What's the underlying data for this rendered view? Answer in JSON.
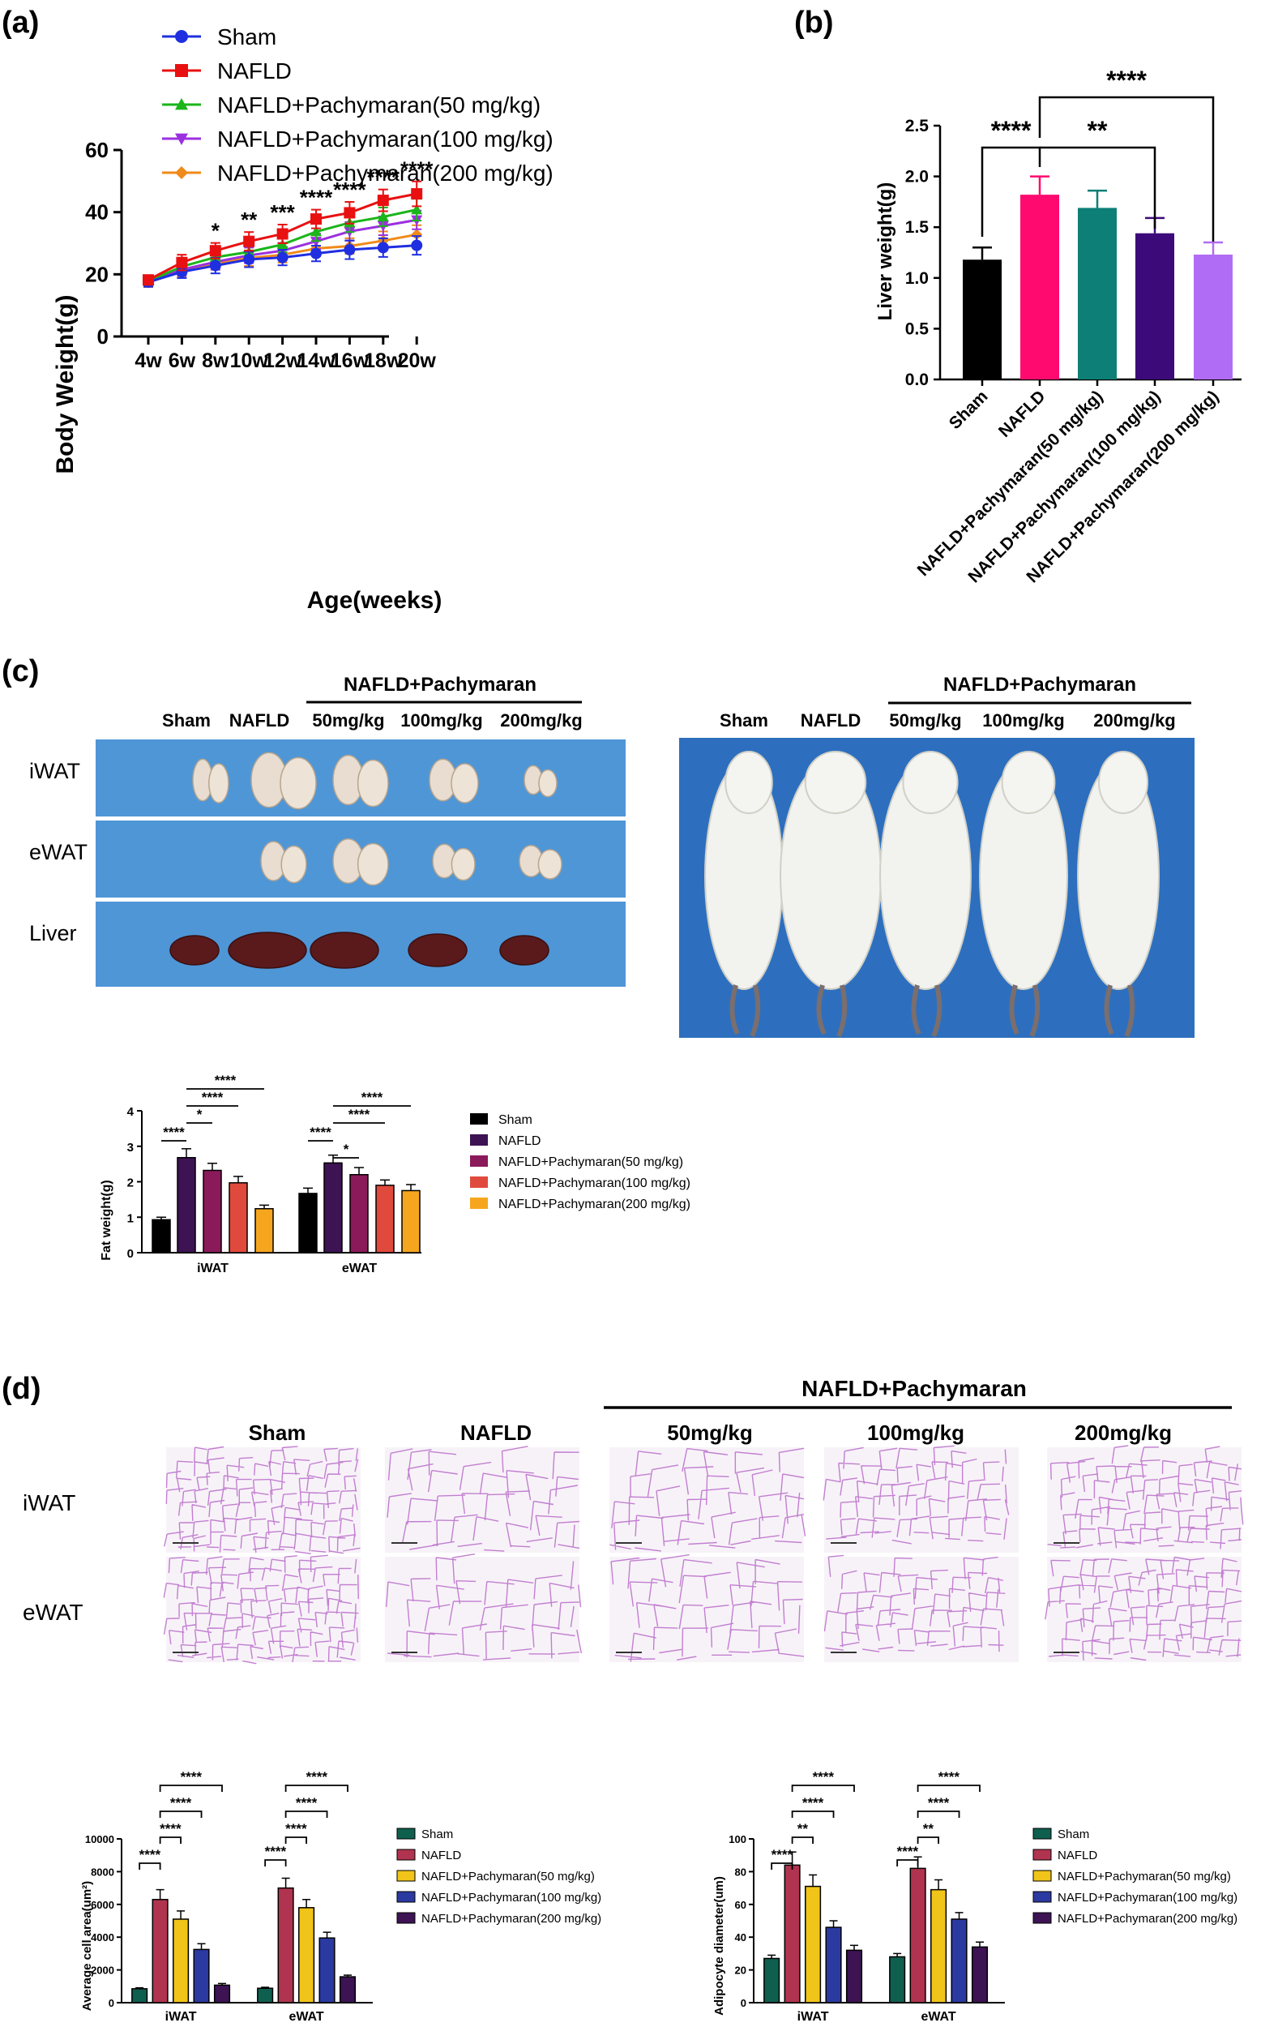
{
  "colors": {
    "sham": "#1f2fe0",
    "nafld": "#e81010",
    "p50": "#1ab51a",
    "p100": "#9b30e0",
    "p200": "#f08a1a",
    "barB": [
      "#000000",
      "#ff0a6e",
      "#0d7f76",
      "#3d0a7a",
      "#b06cf5"
    ],
    "barC": [
      "#000000",
      "#3d1354",
      "#8b1a5a",
      "#e04a3c",
      "#f6a61e"
    ],
    "barD": [
      "#0f5f4f",
      "#b0344f",
      "#f0c419",
      "#2b3aa0",
      "#3d1354"
    ],
    "photoBg": "#4a8fd4",
    "photoBg2": "#1e5fb3"
  },
  "panels": {
    "a": {
      "label": "(a)",
      "legend": [
        "Sham",
        "NAFLD",
        "NAFLD+Pachymaran(50 mg/kg)",
        "NAFLD+Pachymaran(100 mg/kg)",
        "NAFLD+Pachymaran(200 mg/kg)"
      ],
      "sig": [
        "",
        "",
        "*",
        "**",
        "***",
        "****",
        "****",
        "****",
        "****"
      ]
    },
    "b": {
      "label": "(b)",
      "sig": [
        "****",
        "**",
        "****"
      ]
    },
    "c": {
      "label": "(c)",
      "header": "NAFLD+Pachymaran",
      "groups": [
        "Sham",
        "NAFLD",
        "50mg/kg",
        "100mg/kg",
        "200mg/kg"
      ],
      "rows": [
        "iWAT",
        "eWAT",
        "Liver"
      ],
      "sig": [
        "****",
        "*",
        "****",
        "****",
        "****",
        "*",
        "****",
        "****"
      ]
    },
    "d": {
      "label": "(d)",
      "header": "NAFLD+Pachymaran",
      "groups": [
        "Sham",
        "NAFLD",
        "50mg/kg",
        "100mg/kg",
        "200mg/kg"
      ],
      "rows": [
        "iWAT",
        "eWAT"
      ],
      "sig": [
        "****",
        "****",
        "****",
        "****"
      ]
    }
  },
  "chart_data": [
    {
      "type": "line",
      "x": [
        "4w",
        "6w",
        "8w",
        "10w",
        "12w",
        "14w",
        "16w",
        "18w",
        "20w"
      ],
      "xlabel": "Age(weeks)",
      "ylabel": "Body Weight(g)",
      "ylim": [
        0,
        60
      ],
      "yticks": [
        "0",
        "20",
        "40",
        "60"
      ],
      "series": [
        {
          "name": "Sham",
          "values": [
            17.5,
            20.8,
            22.8,
            24.8,
            25.4,
            26.7,
            27.9,
            28.6,
            29.3
          ],
          "err": [
            1.5,
            2.0,
            2.5,
            2.5,
            2.5,
            2.5,
            3.0,
            3.0,
            3.0
          ]
        },
        {
          "name": "NAFLD",
          "values": [
            18.2,
            23.8,
            27.6,
            30.6,
            33.0,
            37.8,
            39.8,
            43.8,
            45.9
          ],
          "err": [
            1.5,
            2.5,
            2.5,
            3.0,
            3.0,
            3.0,
            3.5,
            3.5,
            4.0
          ]
        },
        {
          "name": "NAFLD+Pachymaran(50 mg/kg)",
          "values": [
            17.8,
            22.5,
            25.5,
            27.2,
            29.6,
            33.7,
            36.6,
            38.5,
            40.8
          ],
          "err": [
            1.5,
            2.0,
            2.5,
            2.5,
            2.5,
            3.0,
            3.0,
            3.0,
            3.5
          ]
        },
        {
          "name": "NAFLD+Pachymaran(100 mg/kg)",
          "values": [
            17.6,
            21.5,
            24.0,
            26.1,
            27.6,
            30.6,
            33.8,
            35.6,
            37.5
          ],
          "err": [
            1.5,
            2.0,
            2.5,
            2.5,
            2.5,
            2.5,
            3.0,
            3.0,
            3.0
          ]
        },
        {
          "name": "NAFLD+Pachymaran(200 mg/kg)",
          "values": [
            17.4,
            21.0,
            23.5,
            25.2,
            26.3,
            28.3,
            29.1,
            30.8,
            32.8
          ],
          "err": [
            1.5,
            2.0,
            2.0,
            2.5,
            2.5,
            2.5,
            2.5,
            3.0,
            3.0
          ]
        }
      ]
    },
    {
      "type": "bar",
      "categories": [
        "Sham",
        "NAFLD",
        "NAFLD+Pachymaran(50 mg/kg)",
        "NAFLD+Pachymaran(100 mg/kg)",
        "NAFLD+Pachymaran(200 mg/kg)"
      ],
      "values": [
        1.18,
        1.82,
        1.69,
        1.44,
        1.23
      ],
      "err": [
        0.12,
        0.18,
        0.17,
        0.15,
        0.12
      ],
      "ylabel": "Liver weight(g)",
      "ylim": [
        0,
        2.5
      ],
      "yticks": [
        "0.0",
        "0.5",
        "1.0",
        "1.5",
        "2.0",
        "2.5"
      ]
    },
    {
      "type": "bar",
      "categories": [
        "iWAT",
        "eWAT"
      ],
      "ylabel": "Fat weight(g)",
      "ylim": [
        0,
        4
      ],
      "yticks": [
        "0",
        "1",
        "2",
        "3",
        "4"
      ],
      "series": [
        {
          "name": "Sham",
          "values": [
            0.93,
            1.67
          ],
          "err": [
            0.07,
            0.15
          ]
        },
        {
          "name": "NAFLD",
          "values": [
            2.68,
            2.53
          ],
          "err": [
            0.25,
            0.22
          ]
        },
        {
          "name": "NAFLD+Pachymaran(50 mg/kg)",
          "values": [
            2.32,
            2.2
          ],
          "err": [
            0.2,
            0.2
          ]
        },
        {
          "name": "NAFLD+Pachymaran(100 mg/kg)",
          "values": [
            1.97,
            1.9
          ],
          "err": [
            0.18,
            0.15
          ]
        },
        {
          "name": "NAFLD+Pachymaran(200 mg/kg)",
          "values": [
            1.24,
            1.75
          ],
          "err": [
            0.1,
            0.17
          ]
        }
      ]
    },
    {
      "type": "bar",
      "categories": [
        "iWAT",
        "eWAT"
      ],
      "ylabel": "Average cell area(um²)",
      "ylim": [
        0,
        10000
      ],
      "yticks": [
        "0",
        "2000",
        "4000",
        "6000",
        "8000",
        "10000"
      ],
      "series": [
        {
          "name": "Sham",
          "values": [
            850,
            880
          ],
          "err": [
            60,
            60
          ]
        },
        {
          "name": "NAFLD",
          "values": [
            6300,
            7000
          ],
          "err": [
            600,
            600
          ]
        },
        {
          "name": "NAFLD+Pachymaran(50 mg/kg)",
          "values": [
            5100,
            5800
          ],
          "err": [
            500,
            500
          ]
        },
        {
          "name": "NAFLD+Pachymaran(100 mg/kg)",
          "values": [
            3250,
            3950
          ],
          "err": [
            350,
            350
          ]
        },
        {
          "name": "NAFLD+Pachymaran(200 mg/kg)",
          "values": [
            1070,
            1580
          ],
          "err": [
            100,
            100
          ]
        }
      ]
    },
    {
      "type": "bar",
      "categories": [
        "iWAT",
        "eWAT"
      ],
      "ylabel": "Adipocyte diameter(um)",
      "ylim": [
        0,
        100
      ],
      "yticks": [
        "0",
        "20",
        "40",
        "60",
        "80",
        "100"
      ],
      "series": [
        {
          "name": "Sham",
          "values": [
            27,
            28
          ],
          "err": [
            2,
            2
          ]
        },
        {
          "name": "NAFLD",
          "values": [
            84,
            82
          ],
          "err": [
            8,
            7
          ]
        },
        {
          "name": "NAFLD+Pachymaran(50 mg/kg)",
          "values": [
            71,
            69
          ],
          "err": [
            7,
            6
          ]
        },
        {
          "name": "NAFLD+Pachymaran(100 mg/kg)",
          "values": [
            46,
            51
          ],
          "err": [
            4,
            4
          ]
        },
        {
          "name": "NAFLD+Pachymaran(200 mg/kg)",
          "values": [
            32,
            34
          ],
          "err": [
            3,
            3
          ]
        }
      ]
    }
  ]
}
